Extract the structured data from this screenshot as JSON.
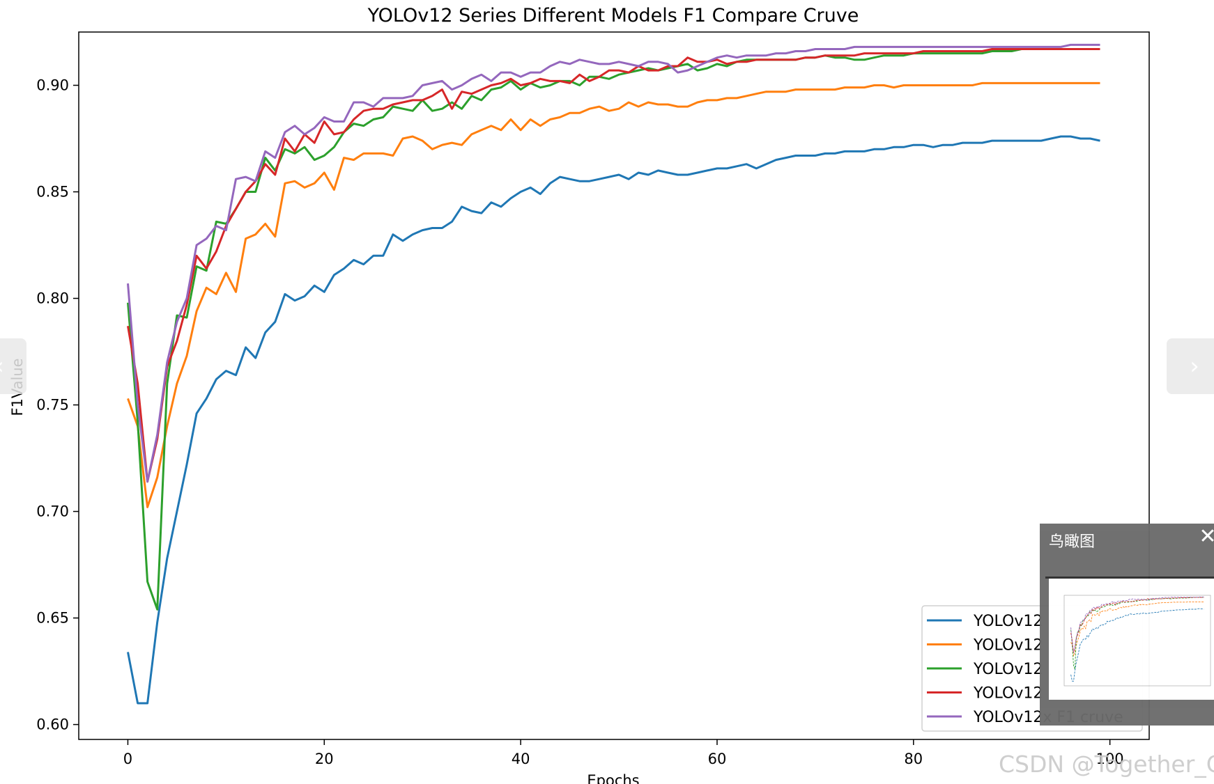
{
  "chart_data": {
    "type": "line",
    "title": "YOLOv12 Series Different Models F1 Compare Cruve",
    "xlabel": "Epochs",
    "ylabel": "F1Value",
    "xlim": [
      -5,
      104
    ],
    "ylim": [
      0.593,
      0.925
    ],
    "xticks": [
      0,
      20,
      40,
      60,
      80,
      100
    ],
    "yticks": [
      0.6,
      0.65,
      0.7,
      0.75,
      0.8,
      0.85,
      0.9
    ],
    "ytick_labels": [
      "0.60",
      "0.65",
      "0.70",
      "0.75",
      "0.80",
      "0.85",
      "0.90"
    ],
    "grid": false,
    "legend_position": "lower-right",
    "series": [
      {
        "name": "YOLOv12",
        "color": "#1f77b4",
        "values": [
          0.634,
          0.61,
          0.61,
          0.648,
          0.678,
          0.7,
          0.722,
          0.746,
          0.753,
          0.762,
          0.766,
          0.764,
          0.777,
          0.772,
          0.784,
          0.789,
          0.802,
          0.799,
          0.801,
          0.806,
          0.803,
          0.811,
          0.814,
          0.818,
          0.816,
          0.82,
          0.82,
          0.83,
          0.827,
          0.83,
          0.832,
          0.833,
          0.833,
          0.836,
          0.843,
          0.841,
          0.84,
          0.845,
          0.843,
          0.847,
          0.85,
          0.852,
          0.849,
          0.854,
          0.857,
          0.856,
          0.855,
          0.855,
          0.856,
          0.857,
          0.858,
          0.856,
          0.859,
          0.858,
          0.86,
          0.859,
          0.858,
          0.858,
          0.859,
          0.86,
          0.861,
          0.861,
          0.862,
          0.863,
          0.861,
          0.863,
          0.865,
          0.866,
          0.867,
          0.867,
          0.867,
          0.868,
          0.868,
          0.869,
          0.869,
          0.869,
          0.87,
          0.87,
          0.871,
          0.871,
          0.872,
          0.872,
          0.871,
          0.872,
          0.872,
          0.873,
          0.873,
          0.873,
          0.874,
          0.874,
          0.874,
          0.874,
          0.874,
          0.874,
          0.875,
          0.876,
          0.876,
          0.875,
          0.875,
          0.874
        ]
      },
      {
        "name": "YOLOv12",
        "color": "#ff7f0e",
        "values": [
          0.753,
          0.74,
          0.702,
          0.716,
          0.74,
          0.76,
          0.773,
          0.794,
          0.805,
          0.802,
          0.812,
          0.803,
          0.828,
          0.83,
          0.835,
          0.829,
          0.854,
          0.855,
          0.852,
          0.854,
          0.859,
          0.851,
          0.866,
          0.865,
          0.868,
          0.868,
          0.868,
          0.867,
          0.875,
          0.876,
          0.874,
          0.87,
          0.872,
          0.873,
          0.872,
          0.877,
          0.879,
          0.881,
          0.879,
          0.884,
          0.879,
          0.884,
          0.881,
          0.884,
          0.885,
          0.887,
          0.887,
          0.889,
          0.89,
          0.888,
          0.889,
          0.892,
          0.89,
          0.892,
          0.891,
          0.891,
          0.89,
          0.89,
          0.892,
          0.893,
          0.893,
          0.894,
          0.894,
          0.895,
          0.896,
          0.897,
          0.897,
          0.897,
          0.898,
          0.898,
          0.898,
          0.898,
          0.898,
          0.899,
          0.899,
          0.899,
          0.9,
          0.9,
          0.899,
          0.9,
          0.9,
          0.9,
          0.9,
          0.9,
          0.9,
          0.9,
          0.9,
          0.901,
          0.901,
          0.901,
          0.901,
          0.901,
          0.901,
          0.901,
          0.901,
          0.901,
          0.901,
          0.901,
          0.901,
          0.901
        ]
      },
      {
        "name": "YOLOv12",
        "color": "#2ca02c",
        "values": [
          0.798,
          0.742,
          0.667,
          0.654,
          0.76,
          0.792,
          0.791,
          0.815,
          0.813,
          0.836,
          0.835,
          0.842,
          0.85,
          0.85,
          0.866,
          0.86,
          0.87,
          0.868,
          0.871,
          0.865,
          0.867,
          0.871,
          0.878,
          0.882,
          0.881,
          0.884,
          0.885,
          0.89,
          0.889,
          0.888,
          0.893,
          0.888,
          0.889,
          0.892,
          0.889,
          0.895,
          0.893,
          0.898,
          0.899,
          0.902,
          0.898,
          0.901,
          0.899,
          0.9,
          0.902,
          0.902,
          0.9,
          0.904,
          0.904,
          0.903,
          0.905,
          0.906,
          0.907,
          0.908,
          0.907,
          0.908,
          0.909,
          0.91,
          0.907,
          0.908,
          0.91,
          0.909,
          0.911,
          0.912,
          0.912,
          0.912,
          0.912,
          0.912,
          0.912,
          0.913,
          0.913,
          0.914,
          0.913,
          0.913,
          0.912,
          0.912,
          0.913,
          0.914,
          0.914,
          0.914,
          0.915,
          0.915,
          0.915,
          0.915,
          0.915,
          0.915,
          0.915,
          0.915,
          0.916,
          0.916,
          0.916,
          0.917,
          0.917,
          0.917,
          0.917,
          0.917,
          0.917,
          0.917,
          0.917,
          0.917
        ]
      },
      {
        "name": "YOLOv12",
        "color": "#d62728",
        "values": [
          0.787,
          0.76,
          0.714,
          0.734,
          0.768,
          0.78,
          0.797,
          0.82,
          0.814,
          0.822,
          0.834,
          0.842,
          0.85,
          0.855,
          0.863,
          0.858,
          0.875,
          0.869,
          0.877,
          0.873,
          0.883,
          0.877,
          0.878,
          0.884,
          0.888,
          0.889,
          0.889,
          0.891,
          0.892,
          0.893,
          0.893,
          0.895,
          0.898,
          0.889,
          0.897,
          0.896,
          0.898,
          0.9,
          0.901,
          0.903,
          0.9,
          0.901,
          0.903,
          0.902,
          0.902,
          0.901,
          0.905,
          0.902,
          0.904,
          0.907,
          0.907,
          0.906,
          0.909,
          0.907,
          0.907,
          0.909,
          0.909,
          0.913,
          0.911,
          0.911,
          0.912,
          0.91,
          0.911,
          0.911,
          0.912,
          0.912,
          0.912,
          0.912,
          0.912,
          0.913,
          0.913,
          0.914,
          0.914,
          0.914,
          0.914,
          0.915,
          0.915,
          0.915,
          0.915,
          0.915,
          0.915,
          0.916,
          0.916,
          0.916,
          0.916,
          0.916,
          0.916,
          0.916,
          0.917,
          0.917,
          0.917,
          0.917,
          0.917,
          0.917,
          0.917,
          0.917,
          0.917,
          0.917,
          0.917,
          0.917
        ]
      },
      {
        "name": "YOLOv12x F1 cruve",
        "color": "#9467bd",
        "values": [
          0.807,
          0.75,
          0.714,
          0.736,
          0.77,
          0.789,
          0.8,
          0.825,
          0.828,
          0.834,
          0.832,
          0.856,
          0.857,
          0.855,
          0.869,
          0.866,
          0.878,
          0.881,
          0.877,
          0.88,
          0.885,
          0.883,
          0.883,
          0.892,
          0.892,
          0.89,
          0.894,
          0.894,
          0.894,
          0.895,
          0.9,
          0.901,
          0.902,
          0.898,
          0.9,
          0.903,
          0.905,
          0.902,
          0.906,
          0.906,
          0.904,
          0.906,
          0.906,
          0.909,
          0.911,
          0.91,
          0.912,
          0.911,
          0.91,
          0.91,
          0.911,
          0.91,
          0.909,
          0.911,
          0.911,
          0.91,
          0.906,
          0.907,
          0.909,
          0.911,
          0.913,
          0.914,
          0.913,
          0.914,
          0.914,
          0.914,
          0.915,
          0.915,
          0.916,
          0.916,
          0.917,
          0.917,
          0.917,
          0.917,
          0.918,
          0.918,
          0.918,
          0.918,
          0.918,
          0.918,
          0.918,
          0.918,
          0.918,
          0.918,
          0.918,
          0.918,
          0.918,
          0.918,
          0.918,
          0.918,
          0.918,
          0.918,
          0.918,
          0.918,
          0.918,
          0.918,
          0.919,
          0.919,
          0.919,
          0.919
        ]
      }
    ]
  },
  "navigation": {
    "prev_icon": "chevron-left-icon",
    "prev_glyph": "‹",
    "next_icon": "chevron-right-icon",
    "next_glyph": "›"
  },
  "birdseye_panel": {
    "title": "鸟瞰图",
    "close_icon": "close-icon",
    "close_glyph": "✕"
  },
  "watermark": "CSDN @Together_CZ"
}
